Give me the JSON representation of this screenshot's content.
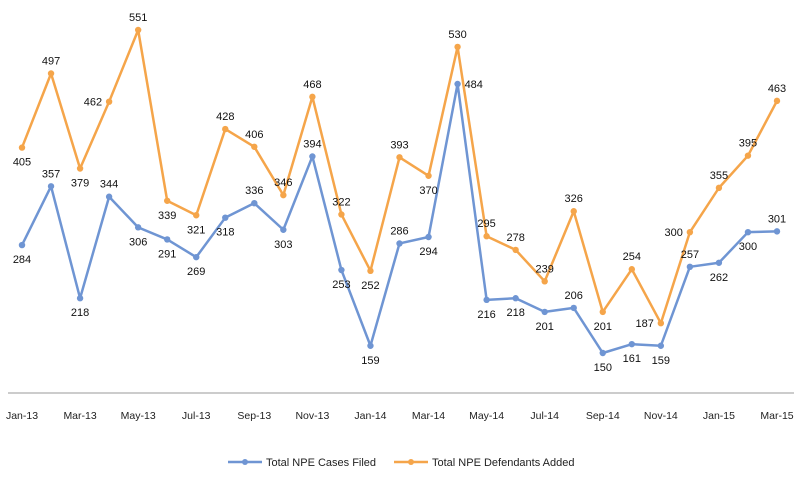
{
  "chart_data": {
    "type": "line",
    "title": "",
    "xlabel": "",
    "ylabel": "",
    "grid": false,
    "legend_position": "bottom",
    "x": [
      "Jan-13",
      "Feb-13",
      "Mar-13",
      "Apr-13",
      "May-13",
      "Jun-13",
      "Jul-13",
      "Aug-13",
      "Sep-13",
      "Oct-13",
      "Nov-13",
      "Dec-13",
      "Jan-14",
      "Feb-14",
      "Mar-14",
      "Apr-14",
      "May-14",
      "Jun-14",
      "Jul-14",
      "Aug-14",
      "Sep-14",
      "Oct-14",
      "Nov-14",
      "Dec-14",
      "Jan-15",
      "Feb-15",
      "Mar-15"
    ],
    "tick_labels": [
      "Jan-13",
      "Mar-13",
      "May-13",
      "Jul-13",
      "Sep-13",
      "Nov-13",
      "Jan-14",
      "Mar-14",
      "May-14",
      "Jul-14",
      "Sep-14",
      "Nov-14",
      "Jan-15",
      "Mar-15"
    ],
    "ylim": [
      100,
      570
    ],
    "series": [
      {
        "name": "Total NPE Cases Filed",
        "color": "#6f95d3",
        "values": [
          284,
          357,
          218,
          344,
          306,
          291,
          269,
          318,
          336,
          303,
          394,
          253,
          159,
          286,
          294,
          484,
          216,
          218,
          201,
          206,
          150,
          161,
          159,
          257,
          262,
          300,
          301
        ]
      },
      {
        "name": "Total NPE Defendants Added",
        "color": "#f5a54a",
        "values": [
          405,
          497,
          379,
          462,
          551,
          339,
          321,
          428,
          406,
          346,
          468,
          322,
          252,
          393,
          370,
          530,
          295,
          278,
          239,
          326,
          201,
          254,
          187,
          300,
          355,
          395,
          463
        ]
      }
    ]
  }
}
